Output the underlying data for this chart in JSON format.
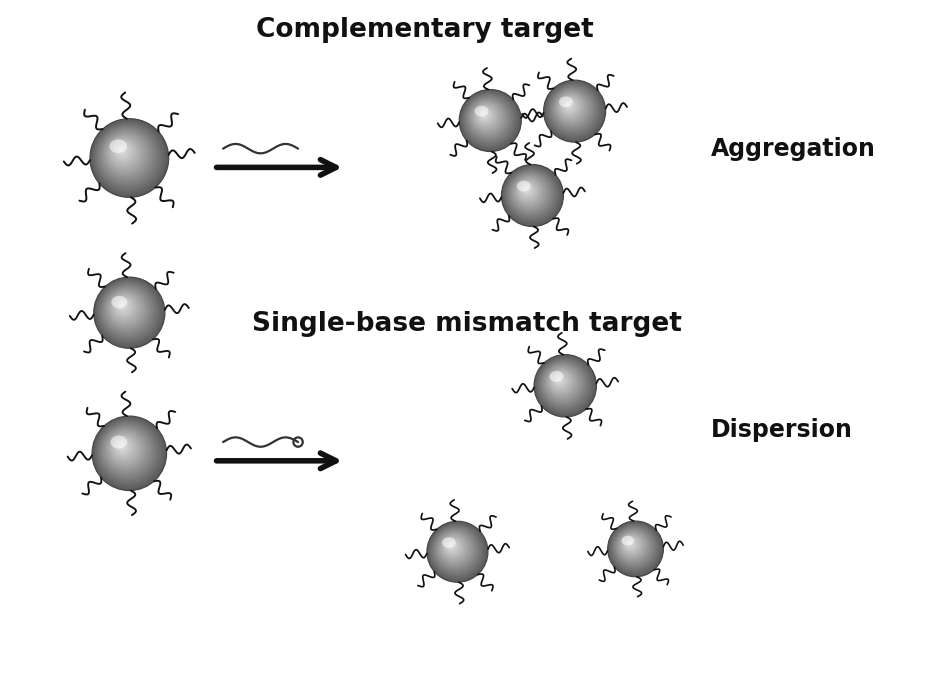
{
  "title_top": "Complementary target",
  "title_middle": "Single-base mismatch target",
  "label_aggregation": "Aggregation",
  "label_dispersion": "Dispersion",
  "bg_color": "#ffffff",
  "arrow_color": "#111111",
  "title_fontsize": 19,
  "label_fontsize": 17,
  "fig_width": 9.43,
  "fig_height": 6.91,
  "dpi": 100
}
